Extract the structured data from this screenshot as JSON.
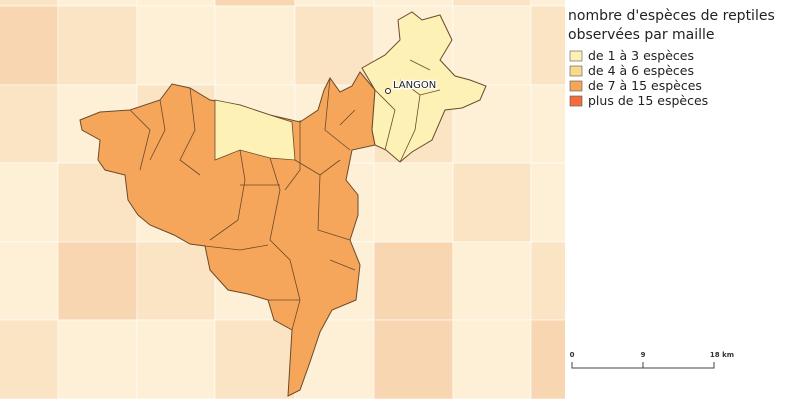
{
  "legend": {
    "title": [
      "nombre d'espèces de reptiles",
      "observées par maille"
    ],
    "items": [
      {
        "label": "de 1 à 3 espèces",
        "color": "#fdf1b6"
      },
      {
        "label": "de 4 à 6 espèces",
        "color": "#f8d98c"
      },
      {
        "label": "de 7 à 15 espèces",
        "color": "#f5a65b"
      },
      {
        "label": "plus de 15 espèces",
        "color": "#f26c3c"
      }
    ]
  },
  "map": {
    "places": [
      {
        "label": "LANGON"
      }
    ]
  },
  "scale_bar": {
    "labels": [
      "0",
      "9",
      "18 km"
    ]
  }
}
